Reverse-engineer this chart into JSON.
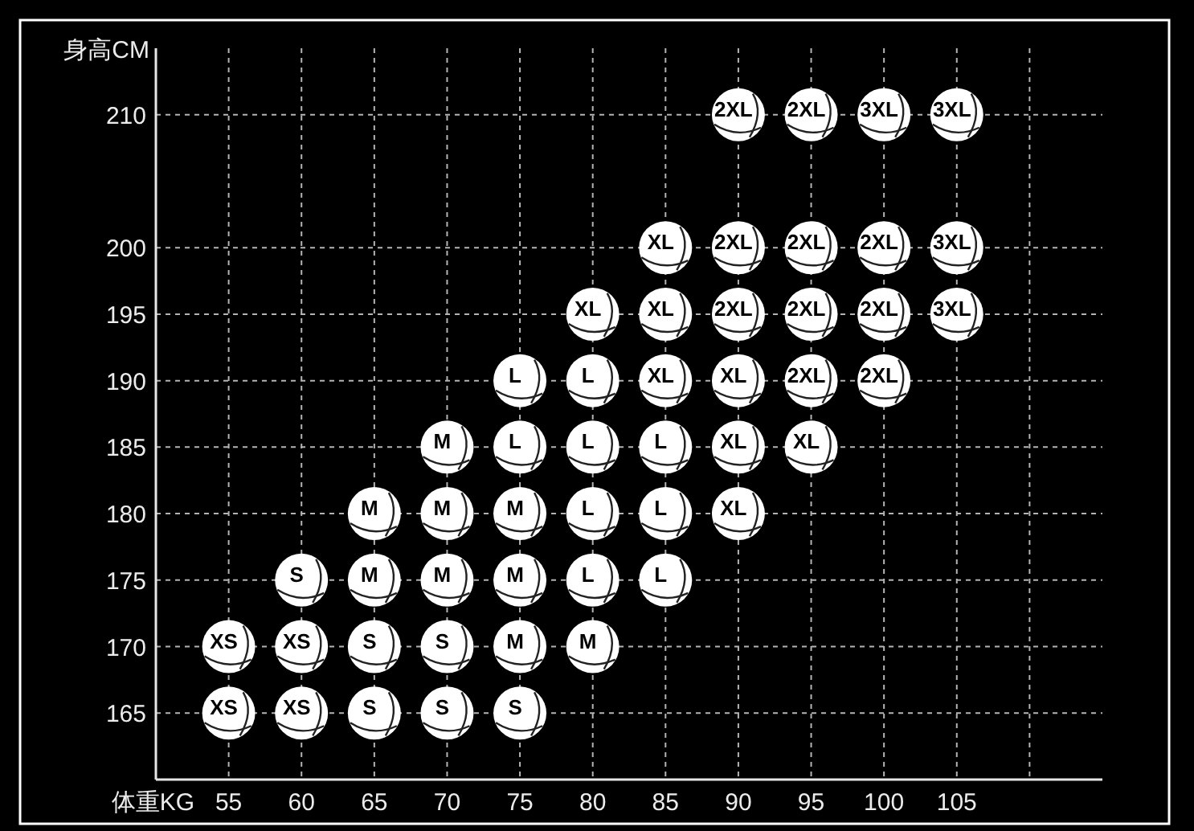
{
  "chart_data": {
    "type": "scatter",
    "xlabel": "体重KG",
    "ylabel": "身高CM",
    "x": [
      90,
      95,
      100,
      105,
      85,
      90,
      95,
      100,
      105,
      80,
      85,
      90,
      95,
      100,
      105,
      75,
      80,
      85,
      90,
      95,
      100,
      70,
      75,
      80,
      85,
      90,
      95,
      65,
      70,
      75,
      80,
      85,
      90,
      60,
      65,
      70,
      75,
      80,
      85,
      55,
      60,
      65,
      70,
      75,
      80,
      55,
      60,
      65,
      70,
      75
    ],
    "values": [
      210,
      210,
      210,
      210,
      200,
      200,
      200,
      200,
      200,
      195,
      195,
      195,
      195,
      195,
      195,
      190,
      190,
      190,
      190,
      190,
      190,
      185,
      185,
      185,
      185,
      185,
      185,
      180,
      180,
      180,
      180,
      180,
      180,
      175,
      175,
      175,
      175,
      175,
      175,
      170,
      170,
      170,
      170,
      170,
      170,
      165,
      165,
      165,
      165,
      165
    ],
    "annotations": [
      {
        "text": "2XL",
        "x": 90,
        "y": 210
      },
      {
        "text": "2XL",
        "x": 95,
        "y": 210
      },
      {
        "text": "3XL",
        "x": 100,
        "y": 210
      },
      {
        "text": "3XL",
        "x": 105,
        "y": 210
      },
      {
        "text": "XL",
        "x": 85,
        "y": 200
      },
      {
        "text": "2XL",
        "x": 90,
        "y": 200
      },
      {
        "text": "2XL",
        "x": 95,
        "y": 200
      },
      {
        "text": "2XL",
        "x": 100,
        "y": 200
      },
      {
        "text": "3XL",
        "x": 105,
        "y": 200
      },
      {
        "text": "XL",
        "x": 80,
        "y": 195
      },
      {
        "text": "XL",
        "x": 85,
        "y": 195
      },
      {
        "text": "2XL",
        "x": 90,
        "y": 195
      },
      {
        "text": "2XL",
        "x": 95,
        "y": 195
      },
      {
        "text": "2XL",
        "x": 100,
        "y": 195
      },
      {
        "text": "3XL",
        "x": 105,
        "y": 195
      },
      {
        "text": "L",
        "x": 75,
        "y": 190
      },
      {
        "text": "L",
        "x": 80,
        "y": 190
      },
      {
        "text": "XL",
        "x": 85,
        "y": 190
      },
      {
        "text": "XL",
        "x": 90,
        "y": 190
      },
      {
        "text": "2XL",
        "x": 95,
        "y": 190
      },
      {
        "text": "2XL",
        "x": 100,
        "y": 190
      },
      {
        "text": "M",
        "x": 70,
        "y": 185
      },
      {
        "text": "L",
        "x": 75,
        "y": 185
      },
      {
        "text": "L",
        "x": 80,
        "y": 185
      },
      {
        "text": "L",
        "x": 85,
        "y": 185
      },
      {
        "text": "XL",
        "x": 90,
        "y": 185
      },
      {
        "text": "XL",
        "x": 95,
        "y": 185
      },
      {
        "text": "M",
        "x": 65,
        "y": 180
      },
      {
        "text": "M",
        "x": 70,
        "y": 180
      },
      {
        "text": "M",
        "x": 75,
        "y": 180
      },
      {
        "text": "L",
        "x": 80,
        "y": 180
      },
      {
        "text": "L",
        "x": 85,
        "y": 180
      },
      {
        "text": "XL",
        "x": 90,
        "y": 180
      },
      {
        "text": "S",
        "x": 60,
        "y": 175
      },
      {
        "text": "M",
        "x": 65,
        "y": 175
      },
      {
        "text": "M",
        "x": 70,
        "y": 175
      },
      {
        "text": "M",
        "x": 75,
        "y": 175
      },
      {
        "text": "L",
        "x": 80,
        "y": 175
      },
      {
        "text": "L",
        "x": 85,
        "y": 175
      },
      {
        "text": "XS",
        "x": 55,
        "y": 170
      },
      {
        "text": "XS",
        "x": 60,
        "y": 170
      },
      {
        "text": "S",
        "x": 65,
        "y": 170
      },
      {
        "text": "S",
        "x": 70,
        "y": 170
      },
      {
        "text": "M",
        "x": 75,
        "y": 170
      },
      {
        "text": "M",
        "x": 80,
        "y": 170
      },
      {
        "text": "XS",
        "x": 55,
        "y": 165
      },
      {
        "text": "XS",
        "x": 60,
        "y": 165
      },
      {
        "text": "S",
        "x": 65,
        "y": 165
      },
      {
        "text": "S",
        "x": 70,
        "y": 165
      },
      {
        "text": "S",
        "x": 75,
        "y": 165
      }
    ],
    "color": "#ffffff",
    "marker": "circle",
    "grid": true,
    "xlim": [
      50,
      115
    ],
    "ylim": [
      160,
      215
    ],
    "xticks": [
      55,
      60,
      65,
      70,
      75,
      80,
      85,
      90,
      95,
      100,
      105,
      {
        "value": 110,
        "label": null
      }
    ],
    "yticks": [
      165,
      170,
      175,
      180,
      185,
      190,
      195,
      200,
      210
    ]
  }
}
